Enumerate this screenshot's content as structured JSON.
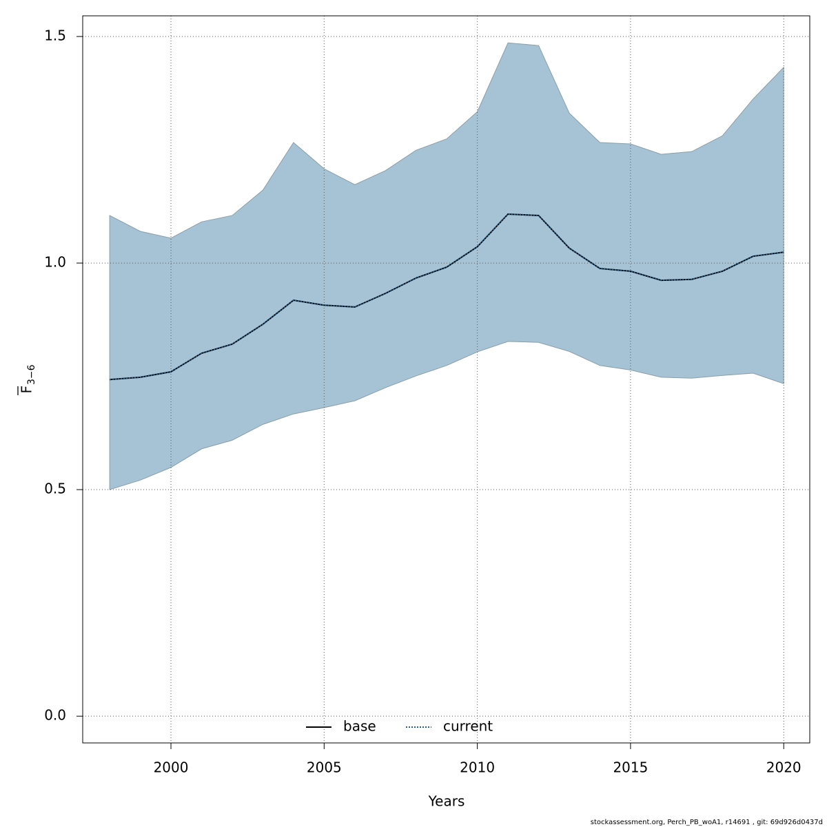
{
  "chart_data": {
    "type": "line",
    "xlabel": "Years",
    "ylabel": "F",
    "ylabel_sub": "3−6",
    "footnote": "stockassessment.org, Perch_PB_woA1, r14691 , git: 69d926d0437d",
    "x": [
      1998,
      1999,
      2000,
      2001,
      2002,
      2003,
      2004,
      2005,
      2006,
      2007,
      2008,
      2009,
      2010,
      2011,
      2012,
      2013,
      2014,
      2015,
      2016,
      2017,
      2018,
      2019,
      2020
    ],
    "band": {
      "color": "#a5c3d4",
      "upper": [
        1.105,
        1.07,
        1.055,
        1.091,
        1.105,
        1.161,
        1.266,
        1.208,
        1.173,
        1.204,
        1.249,
        1.274,
        1.334,
        1.486,
        1.48,
        1.331,
        1.266,
        1.263,
        1.24,
        1.246,
        1.281,
        1.362,
        1.432
      ],
      "lower": [
        0.5,
        0.521,
        0.549,
        0.59,
        0.609,
        0.644,
        0.667,
        0.681,
        0.696,
        0.725,
        0.751,
        0.774,
        0.804,
        0.827,
        0.825,
        0.805,
        0.774,
        0.764,
        0.748,
        0.746,
        0.752,
        0.757,
        0.734
      ]
    },
    "series": [
      {
        "name": "base",
        "color": "#000000",
        "dash": false,
        "values": [
          0.743,
          0.748,
          0.76,
          0.801,
          0.821,
          0.865,
          0.918,
          0.907,
          0.903,
          0.933,
          0.967,
          0.991,
          1.036,
          1.108,
          1.105,
          1.033,
          0.988,
          0.982,
          0.962,
          0.964,
          0.982,
          1.015,
          1.024
        ]
      },
      {
        "name": "current",
        "color": "#1f5f8b",
        "dash": true,
        "values": [
          0.743,
          0.748,
          0.76,
          0.801,
          0.821,
          0.865,
          0.918,
          0.907,
          0.903,
          0.933,
          0.967,
          0.991,
          1.036,
          1.108,
          1.105,
          1.033,
          0.988,
          0.982,
          0.962,
          0.964,
          0.982,
          1.015,
          1.024
        ]
      }
    ],
    "xlim": [
      1997.12,
      2020.85
    ],
    "ylim": [
      -0.059,
      1.5456
    ],
    "xticks": [
      2000,
      2005,
      2010,
      2015,
      2020
    ],
    "yticks": [
      {
        "value": 0,
        "label": "0.0"
      },
      0.5,
      {
        "value": 1,
        "label": "1.0"
      },
      1.5
    ],
    "grid": true,
    "legend": "bottom"
  }
}
